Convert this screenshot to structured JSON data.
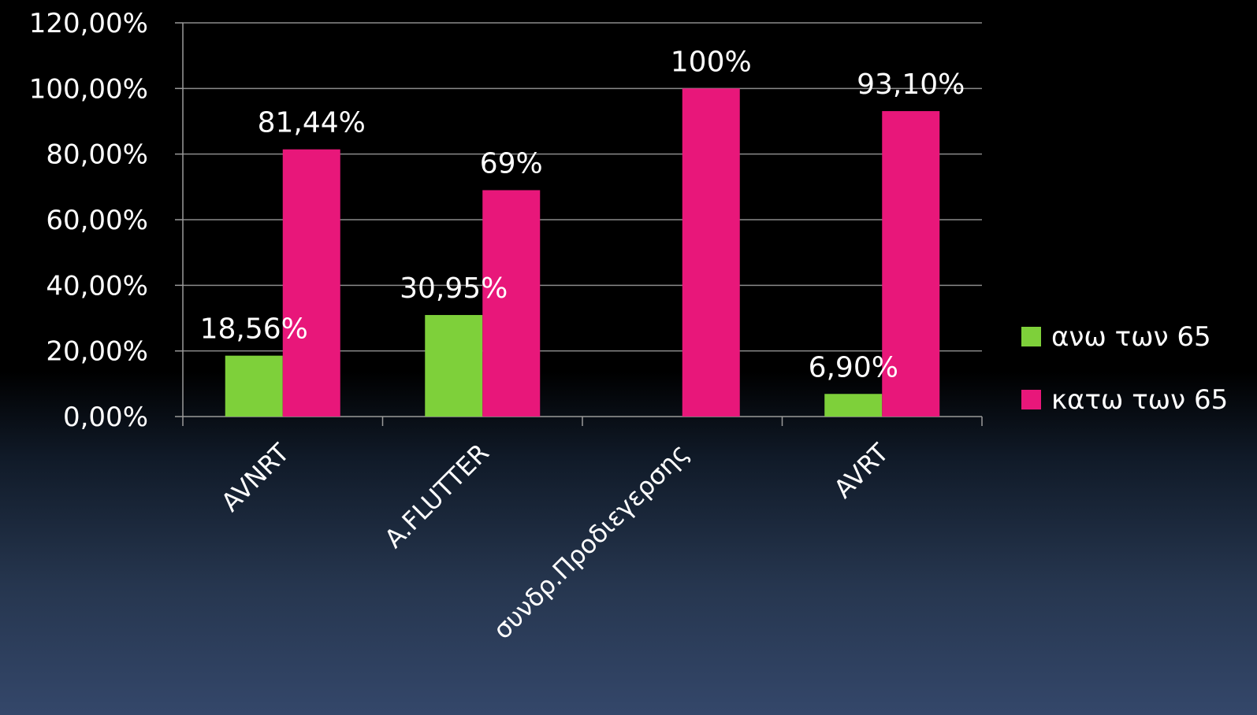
{
  "chart_data": {
    "type": "bar",
    "categories": [
      "AVNRT",
      "A.FLUTTER",
      "συνδρ.Προδιεγερσης",
      "AVRT"
    ],
    "series": [
      {
        "name": "ανω των 65",
        "color": "#7ed03a",
        "values": [
          18.56,
          30.95,
          0,
          6.9
        ],
        "labels": [
          "18,56%",
          "30,95%",
          "",
          "6,90%"
        ]
      },
      {
        "name": "κατω των 65",
        "color": "#e8177a",
        "values": [
          81.44,
          69,
          100,
          93.1
        ],
        "labels": [
          "81,44%",
          "69%",
          "100%",
          "93,10%"
        ]
      }
    ],
    "yticks": [
      0,
      20,
      40,
      60,
      80,
      100,
      120
    ],
    "ytick_labels": [
      "0,00%",
      "20,00%",
      "40,00%",
      "60,00%",
      "80,00%",
      "100,00%",
      "120,00%"
    ],
    "ylim": [
      0,
      120
    ],
    "title": "",
    "xlabel": "",
    "ylabel": "",
    "grid": true,
    "legend": "right"
  }
}
